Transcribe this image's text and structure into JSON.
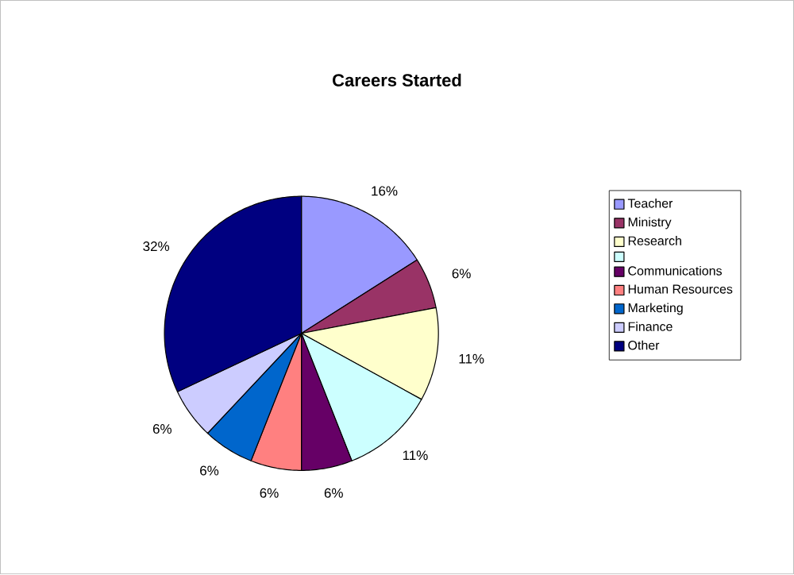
{
  "chart_data": {
    "type": "pie",
    "title": "Careers Started",
    "categories": [
      "Teacher",
      "Ministry",
      "Research",
      null,
      "Communications",
      "Human Resources",
      "Marketing",
      "Finance",
      "Other"
    ],
    "values": [
      16,
      6,
      11,
      11,
      6,
      6,
      6,
      6,
      32
    ],
    "colors": [
      "#9999ff",
      "#993366",
      "#ffffcc",
      "#ccffff",
      "#660066",
      "#ff8080",
      "#0066cc",
      "#ccccff",
      "#000080"
    ],
    "value_labels": [
      "16%",
      "6%",
      "11%",
      "11%",
      "6%",
      "6%",
      "6%",
      "6%",
      "32%"
    ],
    "legend": "right"
  }
}
